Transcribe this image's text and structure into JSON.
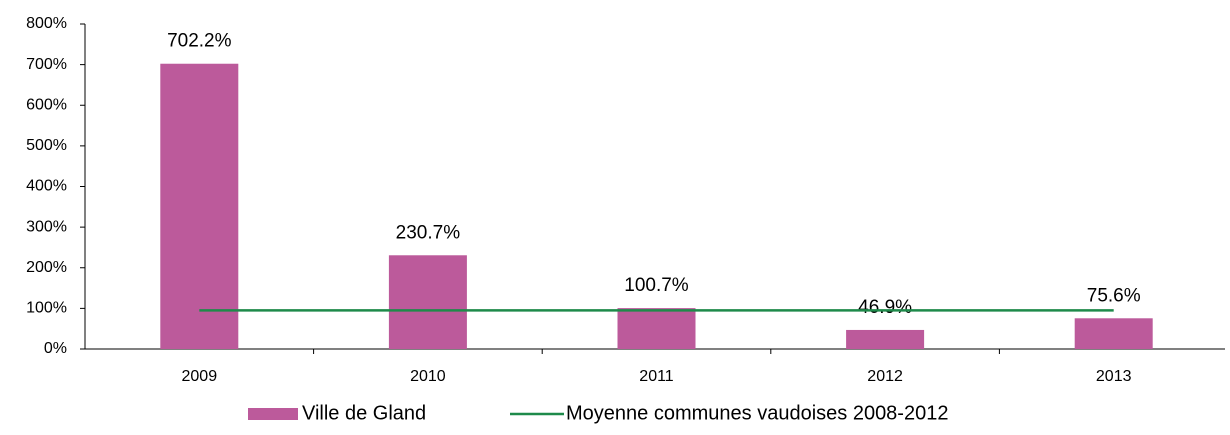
{
  "chart_data": {
    "type": "bar",
    "categories": [
      "2009",
      "2010",
      "2011",
      "2012",
      "2013"
    ],
    "series": [
      {
        "name": "Ville de Gland",
        "type": "bar",
        "color": "#bc5a9b",
        "values": [
          702.2,
          230.7,
          100.7,
          46.9,
          75.6
        ],
        "value_labels": [
          "702.2%",
          "230.7%",
          "100.7%",
          "46.9%",
          "75.6%"
        ]
      },
      {
        "name": "Moyenne communes vaudoises 2008-2012",
        "type": "line",
        "color": "#1e8a4a",
        "values": [
          95,
          95,
          95,
          95,
          95
        ]
      }
    ],
    "ylim": [
      0,
      800
    ],
    "yticks": [
      {
        "value": 0,
        "label": "0%"
      },
      {
        "value": 100,
        "label": "100%"
      },
      {
        "value": 200,
        "label": "200%"
      },
      {
        "value": 300,
        "label": "300%"
      },
      {
        "value": 400,
        "label": "400%"
      },
      {
        "value": 500,
        "label": "500%"
      },
      {
        "value": 600,
        "label": "600%"
      },
      {
        "value": 700,
        "label": "700%"
      },
      {
        "value": 800,
        "label": "800%"
      }
    ],
    "grid": false,
    "legend": "bottom"
  }
}
